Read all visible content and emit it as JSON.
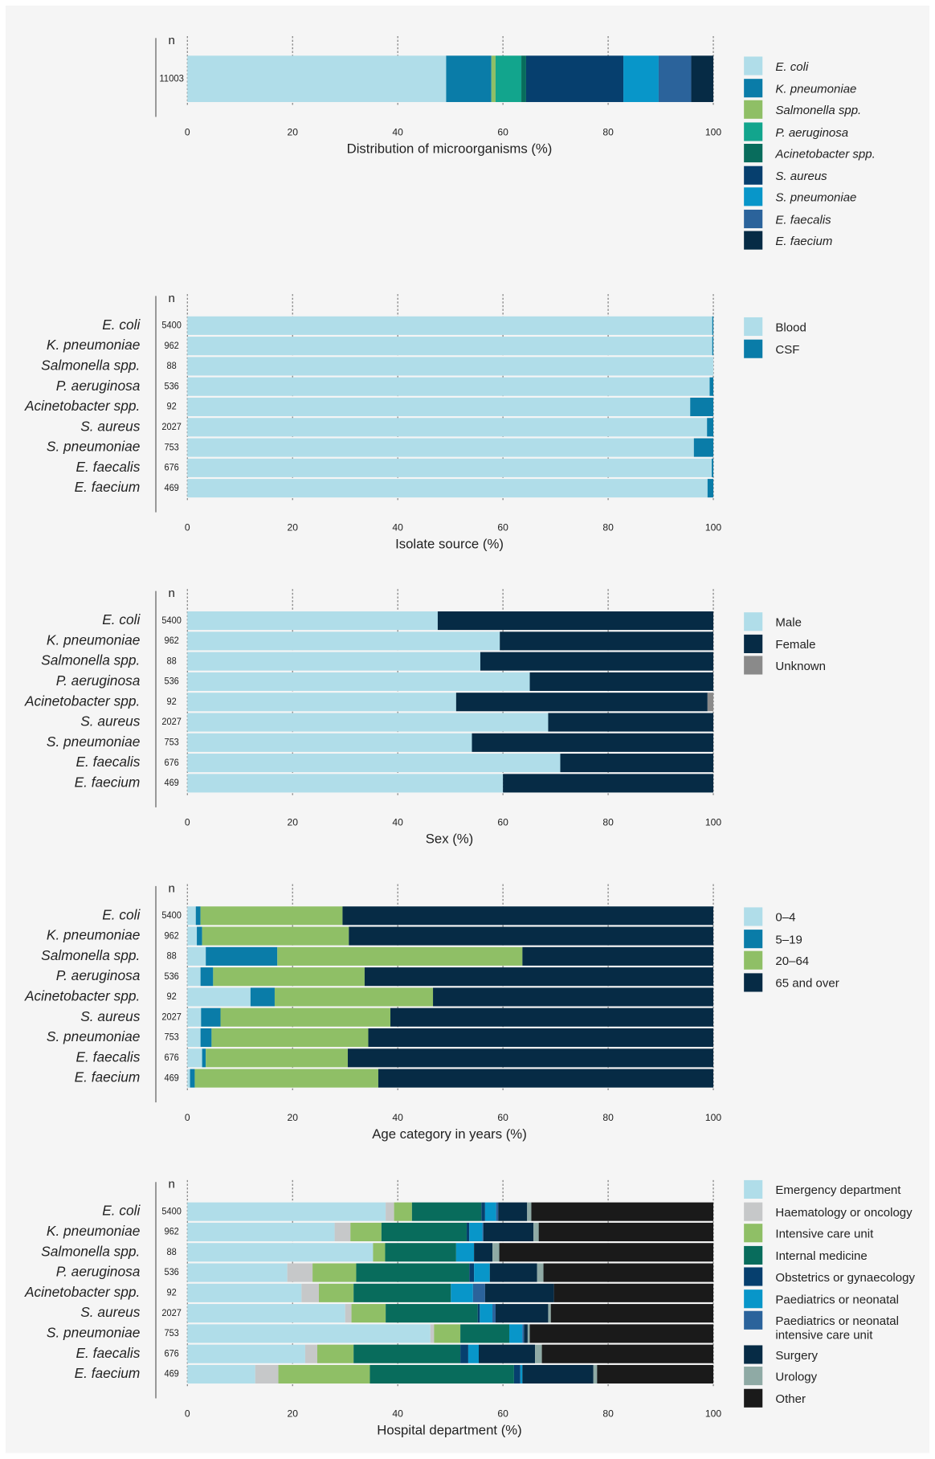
{
  "chart_data": [
    {
      "type": "stacked_barh",
      "n_label": "n",
      "categories": [
        null
      ],
      "n": [
        11003
      ],
      "series": [
        {
          "name": "E. coli",
          "color": "#b0dde9",
          "values": [
            49.2
          ]
        },
        {
          "name": "K. pneumoniae",
          "color": "#0a7ca8",
          "values": [
            8.6
          ]
        },
        {
          "name": "Salmonella spp.",
          "color": "#8fbf66",
          "values": [
            0.8
          ]
        },
        {
          "name": "P. aeruginosa",
          "color": "#12a58d",
          "values": [
            4.9
          ]
        },
        {
          "name": "Acinetobacter spp.",
          "color": "#086c5c",
          "values": [
            0.9
          ]
        },
        {
          "name": "S. aureus",
          "color": "#063f6e",
          "values": [
            18.5
          ]
        },
        {
          "name": "S. pneumoniae",
          "color": "#0896c9",
          "values": [
            6.7
          ]
        },
        {
          "name": "E. faecalis",
          "color": "#2b639b",
          "values": [
            6.2
          ]
        },
        {
          "name": "E. faecium",
          "color": "#062b45",
          "values": [
            4.2
          ]
        }
      ],
      "legend_italic": true,
      "xlabel": "Distribution of microorganisms (%)",
      "xlim": [
        0,
        100
      ],
      "xticks": [
        0,
        20,
        40,
        60,
        80,
        100
      ],
      "grid": true
    },
    {
      "type": "stacked_barh",
      "n_label": "n",
      "categories": [
        "E. coli",
        "K. pneumoniae",
        "Salmonella spp.",
        "P. aeruginosa",
        "Acinetobacter spp.",
        "S. aureus",
        "S. pneumoniae",
        "E. faecalis",
        "E. faecium"
      ],
      "n": [
        5400,
        962,
        88,
        536,
        92,
        2027,
        753,
        676,
        469
      ],
      "series": [
        {
          "name": "Blood",
          "color": "#b0dde9",
          "values": [
            99.8,
            99.8,
            100,
            99.3,
            95.6,
            98.8,
            96.3,
            99.7,
            98.9
          ]
        },
        {
          "name": "CSF",
          "color": "#0a7ca8",
          "values": [
            0.2,
            0.2,
            0,
            0.7,
            4.4,
            1.2,
            3.7,
            0.3,
            1.1
          ]
        }
      ],
      "xlabel": "Isolate source (%)",
      "xlim": [
        0,
        100
      ],
      "xticks": [
        0,
        20,
        40,
        60,
        80,
        100
      ],
      "grid": true
    },
    {
      "type": "stacked_barh",
      "n_label": "n",
      "categories": [
        "E. coli",
        "K. pneumoniae",
        "Salmonella spp.",
        "P. aeruginosa",
        "Acinetobacter spp.",
        "S. aureus",
        "S. pneumoniae",
        "E. faecalis",
        "E. faecium"
      ],
      "n": [
        5400,
        962,
        88,
        536,
        92,
        2027,
        753,
        676,
        469
      ],
      "series": [
        {
          "name": "Male",
          "color": "#b0dde9",
          "values": [
            47.6,
            59.4,
            55.7,
            65.1,
            51.1,
            68.6,
            54.1,
            70.9,
            60.0
          ]
        },
        {
          "name": "Female",
          "color": "#062b45",
          "values": [
            52.4,
            40.6,
            44.3,
            34.9,
            47.8,
            31.4,
            45.9,
            29.1,
            40.0
          ]
        },
        {
          "name": "Unknown",
          "color": "#8a8a8a",
          "values": [
            0,
            0,
            0,
            0,
            1.1,
            0,
            0,
            0,
            0
          ]
        }
      ],
      "xlabel": "Sex (%)",
      "xlim": [
        0,
        100
      ],
      "xticks": [
        0,
        20,
        40,
        60,
        80,
        100
      ],
      "grid": true
    },
    {
      "type": "stacked_barh",
      "n_label": "n",
      "categories": [
        "E. coli",
        "K. pneumoniae",
        "Salmonella spp.",
        "P. aeruginosa",
        "Acinetobacter spp.",
        "S. aureus",
        "S. pneumoniae",
        "E. faecalis",
        "E. faecium"
      ],
      "n": [
        5400,
        962,
        88,
        536,
        92,
        2027,
        753,
        676,
        469
      ],
      "series": [
        {
          "name": "0–4",
          "color": "#b0dde9",
          "values": [
            1.6,
            1.8,
            3.5,
            2.5,
            12.0,
            2.6,
            2.5,
            2.8,
            0.5
          ]
        },
        {
          "name": "5–19",
          "color": "#0a7ca8",
          "values": [
            0.9,
            1.0,
            13.6,
            2.4,
            4.6,
            3.7,
            2.1,
            0.7,
            0.9
          ]
        },
        {
          "name": "20–64",
          "color": "#8fbf66",
          "values": [
            27.0,
            27.9,
            46.6,
            28.8,
            30.1,
            32.3,
            29.8,
            27.0,
            34.9
          ]
        },
        {
          "name": "65 and over",
          "color": "#062b45",
          "values": [
            70.5,
            69.3,
            36.3,
            66.3,
            53.3,
            61.4,
            65.6,
            69.5,
            63.7
          ]
        }
      ],
      "xlabel": "Age category in years (%)",
      "xlim": [
        0,
        100
      ],
      "xticks": [
        0,
        20,
        40,
        60,
        80,
        100
      ],
      "grid": true
    },
    {
      "type": "stacked_barh",
      "n_label": "n",
      "categories": [
        "E. coli",
        "K. pneumoniae",
        "Salmonella spp.",
        "P. aeruginosa",
        "Acinetobacter spp.",
        "S. aureus",
        "S. pneumoniae",
        "E. faecalis",
        "E. faecium"
      ],
      "n": [
        5400,
        962,
        88,
        536,
        92,
        2027,
        753,
        676,
        469
      ],
      "series": [
        {
          "name": "Emergency department",
          "color": "#b0dde9",
          "values": [
            37.7,
            28.0,
            35.3,
            19.0,
            21.7,
            30.0,
            46.2,
            22.4,
            12.9
          ]
        },
        {
          "name": "Haematology or oncology",
          "color": "#c6c8c9",
          "values": [
            1.6,
            3.0,
            0,
            4.8,
            3.3,
            1.2,
            0.7,
            2.3,
            4.4
          ]
        },
        {
          "name": "Intensive care unit",
          "color": "#8fbf66",
          "values": [
            3.4,
            5.9,
            2.3,
            8.3,
            6.6,
            6.5,
            5.0,
            6.9,
            17.4
          ]
        },
        {
          "name": "Internal medicine",
          "color": "#086c5c",
          "values": [
            13.2,
            16.2,
            13.5,
            21.5,
            18.5,
            17.5,
            9.3,
            20.3,
            27.4
          ]
        },
        {
          "name": "Obstetrics or gynaecology",
          "color": "#063f6e",
          "values": [
            0.7,
            0.5,
            0,
            0.9,
            0,
            0.4,
            0,
            1.5,
            1.2
          ]
        },
        {
          "name": "Paediatrics or neonatal",
          "color": "#0896c9",
          "values": [
            2.1,
            2.5,
            3.4,
            3.0,
            4.2,
            2.4,
            2.5,
            2.0,
            0.4
          ]
        },
        {
          "name": "Paediatrics or neonatal intensive care unit",
          "color": "#2b639b",
          "values": [
            0.4,
            0.2,
            0,
            0,
            2.3,
            0.6,
            0.3,
            0,
            0
          ]
        },
        {
          "name": "Surgery",
          "color": "#062b45",
          "values": [
            5.5,
            9.5,
            3.5,
            9.0,
            13.1,
            10.0,
            0.7,
            10.7,
            13.5
          ]
        },
        {
          "name": "Urology",
          "color": "#8faaa5",
          "values": [
            0.8,
            1.0,
            1.3,
            1.2,
            0,
            0.5,
            0.4,
            1.3,
            0.7
          ]
        },
        {
          "name": "Other",
          "color": "#1a1a1a",
          "values": [
            34.6,
            33.2,
            40.7,
            32.3,
            30.3,
            30.9,
            34.9,
            32.6,
            22.1
          ]
        }
      ],
      "xlabel": "Hospital department (%)",
      "xlim": [
        0,
        100
      ],
      "xticks": [
        0,
        20,
        40,
        60,
        80,
        100
      ],
      "grid": true
    }
  ]
}
